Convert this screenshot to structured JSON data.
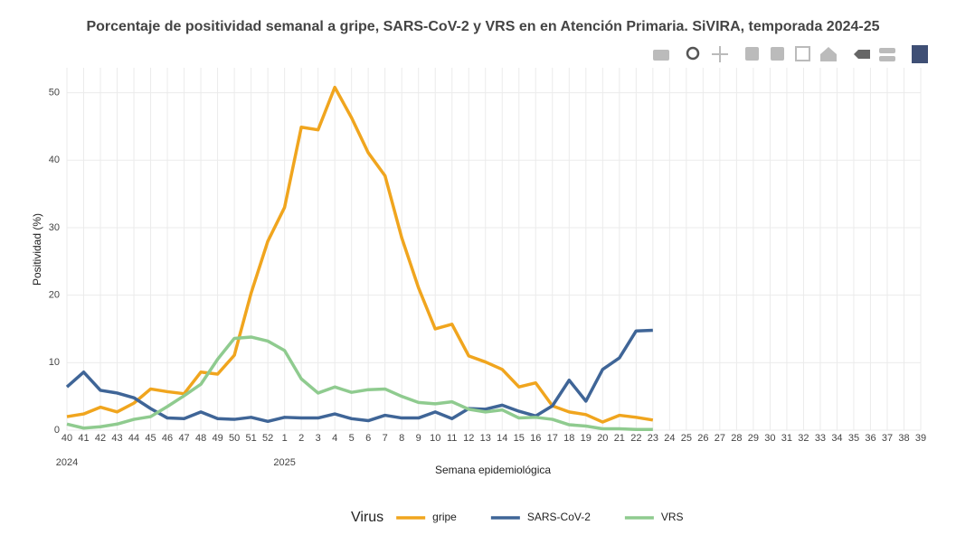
{
  "chart_data": {
    "type": "line",
    "title": "Porcentaje de positividad semanal a gripe, SARS-CoV-2 y VRS en en Atención Primaria. SiVIRA, temporada 2024-25",
    "x_label": "Semana epidemiológica",
    "y_label": "Positividad (%)",
    "legend_title": "Virus",
    "legend_position": "bottom",
    "grid": true,
    "categories": [
      "40",
      "41",
      "42",
      "43",
      "44",
      "45",
      "46",
      "47",
      "48",
      "49",
      "50",
      "51",
      "52",
      "1",
      "2",
      "3",
      "4",
      "5",
      "6",
      "7",
      "8",
      "9",
      "10",
      "11",
      "12",
      "13",
      "14",
      "15",
      "16",
      "17",
      "18",
      "19",
      "20",
      "21",
      "22",
      "23",
      "24",
      "25",
      "26",
      "27",
      "28",
      "29",
      "30",
      "31",
      "32",
      "33",
      "34",
      "35",
      "36",
      "37",
      "38",
      "39"
    ],
    "year_labels": [
      {
        "text": "2024",
        "at": "40"
      },
      {
        "text": "2025",
        "at": "1"
      }
    ],
    "ylim": [
      0,
      53.7
    ],
    "yticks": [
      0,
      10,
      20,
      30,
      40,
      50
    ],
    "series": [
      {
        "name": "gripe",
        "color": "#f0a51e",
        "values": [
          2.0,
          2.4,
          3.4,
          2.7,
          4.0,
          6.1,
          5.7,
          5.4,
          8.6,
          8.3,
          11.1,
          20.3,
          28.0,
          33.0,
          44.9,
          44.5,
          50.8,
          46.3,
          41.1,
          37.7,
          28.5,
          21.1,
          15.0,
          15.7,
          11.0,
          10.1,
          9.0,
          6.4,
          7.0,
          3.6,
          2.7,
          2.3,
          1.2,
          2.2,
          1.9,
          1.5,
          null,
          null,
          null,
          null,
          null,
          null,
          null,
          null,
          null,
          null,
          null,
          null,
          null,
          null,
          null,
          null
        ]
      },
      {
        "name": "SARS-CoV-2",
        "color": "#3f6597",
        "values": [
          6.4,
          8.6,
          5.9,
          5.5,
          4.8,
          3.2,
          1.8,
          1.7,
          2.7,
          1.7,
          1.6,
          1.9,
          1.3,
          1.9,
          1.8,
          1.8,
          2.4,
          1.7,
          1.4,
          2.2,
          1.8,
          1.8,
          2.7,
          1.7,
          3.2,
          3.1,
          3.7,
          2.8,
          2.1,
          3.6,
          7.4,
          4.3,
          9.0,
          10.7,
          14.7,
          14.8,
          null,
          null,
          null,
          null,
          null,
          null,
          null,
          null,
          null,
          null,
          null,
          null,
          null,
          null,
          null,
          null
        ]
      },
      {
        "name": "VRS",
        "color": "#8fcb8f",
        "values": [
          0.9,
          0.3,
          0.5,
          0.9,
          1.6,
          2.0,
          3.5,
          5.1,
          6.8,
          10.5,
          13.6,
          13.8,
          13.2,
          11.8,
          7.6,
          5.5,
          6.4,
          5.6,
          6.0,
          6.1,
          5.0,
          4.1,
          3.9,
          4.2,
          3.1,
          2.7,
          3.0,
          1.8,
          1.9,
          1.6,
          0.8,
          0.6,
          0.2,
          0.2,
          0.1,
          0.1,
          null,
          null,
          null,
          null,
          null,
          null,
          null,
          null,
          null,
          null,
          null,
          null,
          null,
          null,
          null,
          null
        ]
      }
    ]
  }
}
